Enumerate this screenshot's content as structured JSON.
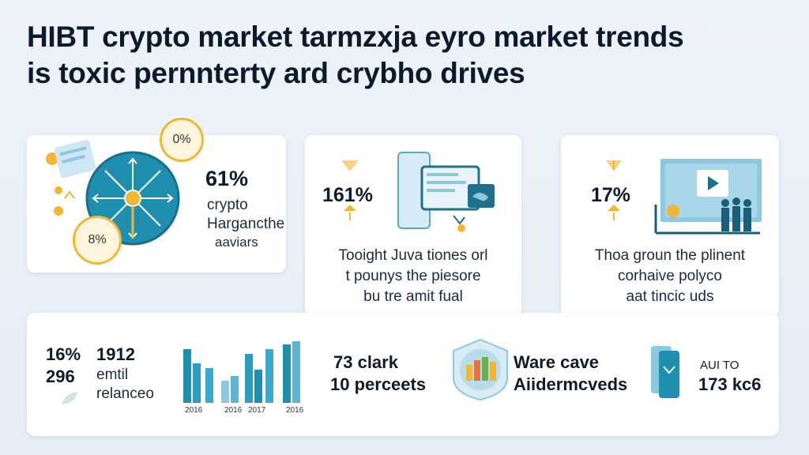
{
  "title": {
    "line1": "HIBT crypto market tarmzxja eyro market trends",
    "line2": "is toxic pernnterty ard crybho drives"
  },
  "card1": {
    "stat": "61%",
    "line1": "crypto",
    "line2": "Hargancthe",
    "line3": "aaviars",
    "bubble_top": "0%",
    "bubble_bottom": "8%"
  },
  "card2": {
    "stat": "161%",
    "line1": "Tooight Juva tiones orl",
    "line2": "t pounys the piesore",
    "line3": "bu tre amit fual"
  },
  "card3": {
    "stat": "17%",
    "line1": "Thoa groun the plinent",
    "line2": "corhaive polyco",
    "line3": "aat tincic uds"
  },
  "card4": {
    "stat_a1": "16%",
    "stat_a2": "296",
    "stat_b1": "1912",
    "text_b2": "emtil",
    "text_b3": "relanceo",
    "years": [
      "2016",
      "2016",
      "2017",
      "2016"
    ],
    "stat_c1": "73 clark",
    "stat_c2": "10 perceets",
    "text_d1": "Ware cave",
    "text_d2": "Aiidermcveds",
    "text_e1": "AUI TO",
    "text_e2": "173 kc6"
  },
  "colors": {
    "accent_teal": "#1f8fb0",
    "accent_dark_teal": "#1a6e8e",
    "accent_gold": "#f2b632",
    "light_blue": "#8cc8de"
  },
  "icons": [
    "network-hub-icon",
    "coin-icon",
    "tablet-chart-icon",
    "presentation-screen-icon",
    "team-silhouette-icon",
    "bar-chart-icon",
    "globe-chart-icon",
    "phone-stack-icon"
  ]
}
